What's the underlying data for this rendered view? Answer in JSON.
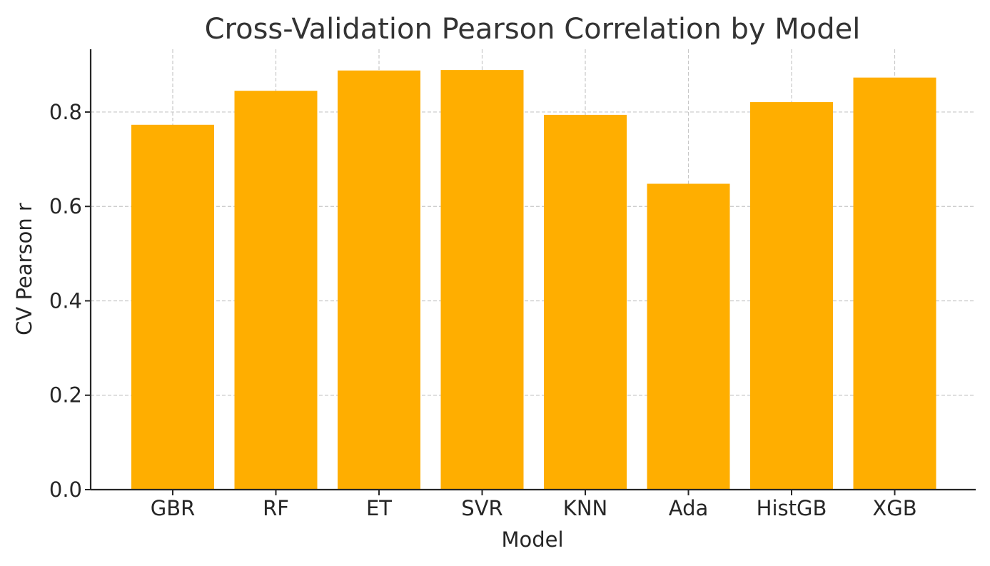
{
  "chart_data": {
    "type": "bar",
    "title": "Cross-Validation Pearson Correlation by Model",
    "xlabel": "Model",
    "ylabel": "CV Pearson r",
    "categories": [
      "GBR",
      "RF",
      "ET",
      "SVR",
      "KNN",
      "Ada",
      "HistGB",
      "XGB"
    ],
    "values": [
      0.773,
      0.845,
      0.888,
      0.889,
      0.794,
      0.648,
      0.821,
      0.873
    ],
    "ylim": [
      0,
      0.933
    ],
    "yticks": [
      0.0,
      0.2,
      0.4,
      0.6,
      0.8
    ],
    "ytick_labels": [
      "0.0",
      "0.2",
      "0.4",
      "0.6",
      "0.8"
    ],
    "grid": true,
    "bar_color": "#FFAE00"
  }
}
